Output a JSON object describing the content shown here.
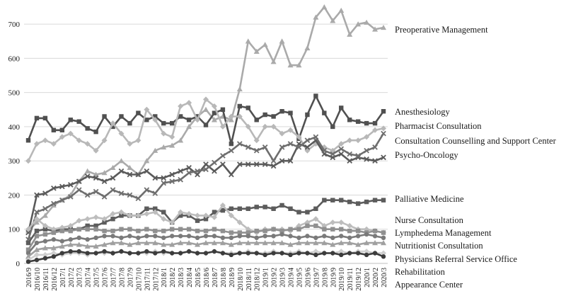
{
  "chart_data": {
    "type": "line",
    "title": "",
    "xlabel": "",
    "ylabel": "",
    "ylim": [
      0,
      750
    ],
    "yticks": [
      0,
      100,
      200,
      300,
      400,
      500,
      600,
      700
    ],
    "grid": "horizontal",
    "legend": "right, labels placed at line ends",
    "x": [
      "2016/9",
      "2016/10",
      "2016/11",
      "2016/12",
      "2017/1",
      "2017/2",
      "2017/3",
      "2017/4",
      "2017/5",
      "2017/6",
      "2017/7",
      "2017/8",
      "2017/9",
      "2017/10",
      "2017/11",
      "2017/12",
      "2018/1",
      "2018/2",
      "2018/3",
      "2018/4",
      "2018/5",
      "2018/6",
      "2018/7",
      "2018/8",
      "2018/9",
      "2018/10",
      "2018/11",
      "2018/12",
      "2019/1",
      "2019/2",
      "2019/3",
      "2019/4",
      "2019/5",
      "2019/6",
      "2019/7",
      "2019/8",
      "2019/9",
      "2019/10",
      "2019/11",
      "2019/12",
      "2020/1",
      "2020/2",
      "2020/3"
    ],
    "series": [
      {
        "name": "Preoperative Management",
        "color": "#aaaaaa",
        "marker": "triangle",
        "values": [
          95,
          120,
          140,
          170,
          185,
          200,
          240,
          270,
          260,
          265,
          280,
          300,
          280,
          260,
          300,
          330,
          340,
          345,
          360,
          400,
          430,
          450,
          420,
          430,
          420,
          510,
          650,
          620,
          640,
          590,
          650,
          580,
          580,
          630,
          720,
          750,
          710,
          740,
          670,
          700,
          705,
          685,
          690
        ]
      },
      {
        "name": "Anesthesiology",
        "color": "#505050",
        "marker": "square",
        "values": [
          360,
          425,
          425,
          390,
          390,
          420,
          415,
          395,
          385,
          430,
          400,
          430,
          410,
          440,
          420,
          430,
          410,
          410,
          430,
          420,
          430,
          405,
          440,
          450,
          350,
          460,
          455,
          420,
          435,
          430,
          445,
          440,
          365,
          435,
          490,
          440,
          400,
          455,
          420,
          415,
          410,
          410,
          445
        ]
      },
      {
        "name": "Pharmacist Consultation",
        "color": "#b8b8b8",
        "marker": "diamond",
        "values": [
          300,
          350,
          360,
          350,
          370,
          380,
          360,
          350,
          330,
          360,
          410,
          380,
          350,
          360,
          450,
          420,
          380,
          370,
          460,
          470,
          420,
          480,
          460,
          400,
          430,
          430,
          400,
          360,
          400,
          400,
          380,
          390,
          370,
          330,
          350,
          340,
          330,
          350,
          360,
          360,
          370,
          390,
          395
        ]
      },
      {
        "name": "Consultation Counselling and Support Center",
        "color": "#5a5a5a",
        "marker": "x",
        "values": [
          90,
          200,
          205,
          220,
          225,
          230,
          240,
          255,
          250,
          240,
          250,
          270,
          260,
          260,
          270,
          250,
          250,
          260,
          270,
          280,
          260,
          290,
          270,
          290,
          260,
          290,
          290,
          290,
          290,
          285,
          300,
          300,
          350,
          340,
          360,
          320,
          310,
          320,
          300,
          310,
          305,
          300,
          310
        ]
      },
      {
        "name": "Psycho-Oncology",
        "color": "#6e6e6e",
        "marker": "x",
        "values": [
          70,
          150,
          160,
          175,
          185,
          195,
          215,
          200,
          210,
          195,
          215,
          205,
          200,
          190,
          215,
          205,
          235,
          240,
          245,
          265,
          270,
          275,
          295,
          315,
          330,
          350,
          340,
          330,
          340,
          300,
          340,
          350,
          340,
          360,
          370,
          330,
          320,
          335,
          320,
          315,
          330,
          340,
          380
        ]
      },
      {
        "name": "Palliative Medicine",
        "color": "#5c5c5c",
        "marker": "square",
        "values": [
          60,
          95,
          100,
          95,
          100,
          100,
          100,
          110,
          110,
          120,
          130,
          140,
          140,
          140,
          160,
          160,
          150,
          120,
          140,
          140,
          125,
          130,
          150,
          155,
          160,
          160,
          160,
          165,
          165,
          160,
          170,
          160,
          150,
          150,
          160,
          185,
          185,
          185,
          180,
          175,
          180,
          185,
          185
        ]
      },
      {
        "name": "Nurse Consultation",
        "color": "#bdbdbd",
        "marker": "diamond",
        "values": [
          100,
          130,
          110,
          100,
          105,
          110,
          125,
          130,
          135,
          130,
          145,
          150,
          140,
          140,
          145,
          150,
          130,
          120,
          150,
          145,
          140,
          140,
          135,
          170,
          140,
          120,
          100,
          90,
          100,
          100,
          100,
          95,
          110,
          120,
          130,
          110,
          120,
          120,
          110,
          100,
          100,
          95,
          90
        ]
      },
      {
        "name": "Lymphedema Management",
        "color": "#909090",
        "marker": "square",
        "values": [
          40,
          80,
          85,
          90,
          95,
          95,
          100,
          100,
          100,
          95,
          95,
          100,
          100,
          95,
          100,
          95,
          95,
          100,
          100,
          100,
          95,
          95,
          100,
          95,
          90,
          90,
          90,
          95,
          95,
          100,
          95,
          100,
          100,
          110,
          110,
          100,
          100,
          100,
          95,
          95,
          90,
          95,
          90
        ]
      },
      {
        "name": "Nutritionist Consultation",
        "color": "#7a7a7a",
        "marker": "circle",
        "values": [
          30,
          60,
          65,
          70,
          65,
          70,
          75,
          70,
          75,
          80,
          80,
          75,
          80,
          75,
          80,
          80,
          75,
          80,
          80,
          80,
          75,
          80,
          80,
          75,
          75,
          80,
          80,
          75,
          80,
          80,
          85,
          80,
          75,
          80,
          75,
          80,
          75,
          80,
          75,
          80,
          85,
          80,
          75
        ]
      },
      {
        "name": "Physicians Referral Service Office",
        "color": "#a0a0a0",
        "marker": "triangle",
        "values": [
          20,
          40,
          45,
          45,
          50,
          55,
          55,
          50,
          50,
          55,
          60,
          60,
          55,
          60,
          60,
          60,
          55,
          55,
          60,
          60,
          55,
          60,
          60,
          60,
          55,
          60,
          60,
          60,
          60,
          60,
          60,
          55,
          60,
          60,
          60,
          60,
          55,
          60,
          60,
          55,
          60,
          60,
          60
        ]
      },
      {
        "name": "Rehabilitation",
        "color": "#cfcfcf",
        "marker": "diamond",
        "values": [
          10,
          25,
          25,
          30,
          25,
          30,
          30,
          25,
          30,
          30,
          30,
          35,
          30,
          30,
          30,
          35,
          30,
          30,
          30,
          35,
          30,
          30,
          35,
          30,
          30,
          30,
          35,
          30,
          30,
          35,
          30,
          30,
          35,
          30,
          35,
          30,
          30,
          35,
          30,
          35,
          35,
          30,
          30
        ]
      },
      {
        "name": "Appearance Center",
        "color": "#3c3c3c",
        "marker": "circle",
        "values": [
          5,
          10,
          15,
          20,
          30,
          35,
          35,
          30,
          30,
          35,
          30,
          35,
          30,
          30,
          35,
          30,
          35,
          30,
          30,
          35,
          30,
          30,
          35,
          30,
          25,
          30,
          30,
          30,
          25,
          30,
          30,
          25,
          30,
          30,
          25,
          30,
          30,
          25,
          30,
          30,
          25,
          30,
          20
        ]
      }
    ],
    "legend_entries": [
      "Preoperative Management",
      "Anesthesiology",
      "Pharmacist Consultation",
      "Consultation Counselling and Support Center",
      "Psycho-Oncology",
      "Palliative Medicine",
      "Nurse Consultation",
      "Lymphedema Management",
      "Nutritionist Consultation",
      "Physicians Referral Service Office",
      "Rehabilitation",
      "Appearance Center"
    ]
  }
}
